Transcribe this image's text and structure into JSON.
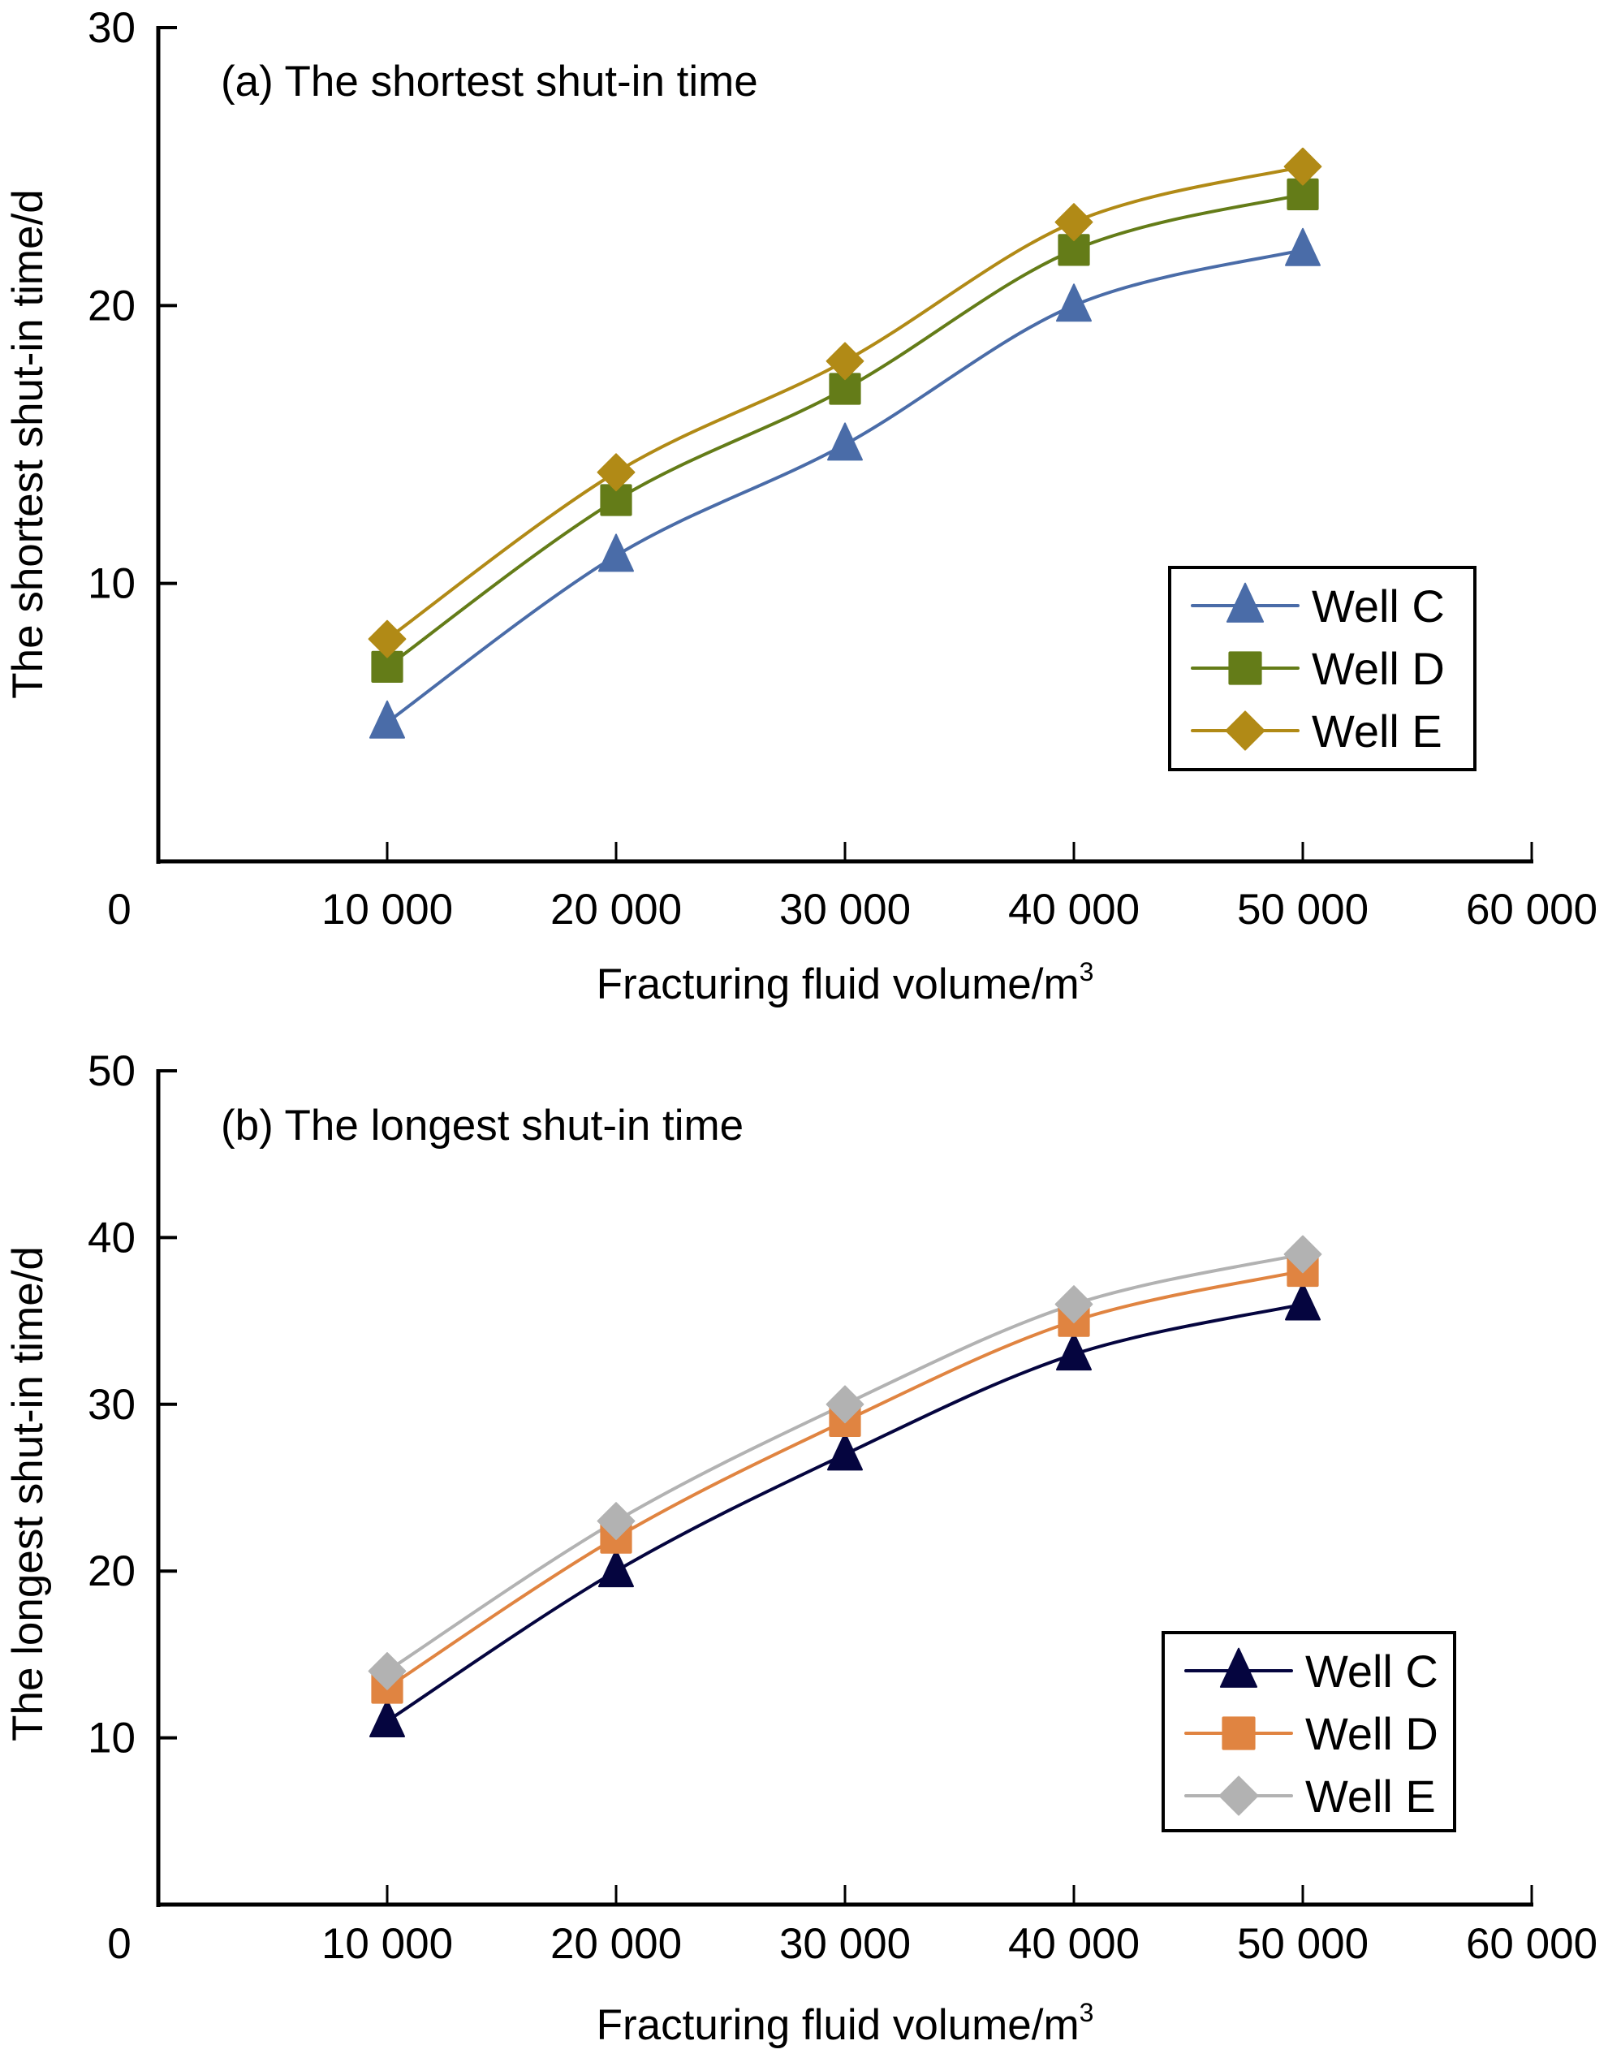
{
  "chart_data": [
    {
      "id": "a",
      "type": "line",
      "title": "(a) The shortest shut-in time",
      "xlabel": "Fracturing fluid volume/m",
      "xlabel_superscript": "3",
      "ylabel": "The shortest shut-in time/d",
      "xlim": [
        0,
        60000
      ],
      "ylim": [
        0,
        30
      ],
      "x_ticks": [
        0,
        10000,
        20000,
        30000,
        40000,
        50000,
        60000
      ],
      "x_tick_labels": [
        "0",
        "10 000",
        "20 000",
        "30 000",
        "40 000",
        "50 000",
        "60 000"
      ],
      "y_ticks": [
        10,
        20,
        30
      ],
      "y_tick_labels": [
        "10",
        "20",
        "30"
      ],
      "grid": false,
      "legend_position": "lower-right",
      "x": [
        10000,
        20000,
        30000,
        40000,
        50000
      ],
      "series": [
        {
          "name": "Well C",
          "marker": "triangle",
          "color": "#4A6CA8",
          "values": [
            5,
            11,
            15,
            20,
            22
          ]
        },
        {
          "name": "Well D",
          "marker": "square",
          "color": "#647C18",
          "values": [
            7,
            13,
            17,
            22,
            24
          ]
        },
        {
          "name": "Well E",
          "marker": "diamond",
          "color": "#B18A16",
          "values": [
            8,
            14,
            18,
            23,
            25
          ]
        }
      ]
    },
    {
      "id": "b",
      "type": "line",
      "title": "(b) The longest shut-in time",
      "xlabel": "Fracturing fluid volume/m",
      "xlabel_superscript": "3",
      "ylabel": "The longest shut-in time/d",
      "xlim": [
        0,
        60000
      ],
      "ylim": [
        0,
        50
      ],
      "x_ticks": [
        0,
        10000,
        20000,
        30000,
        40000,
        50000,
        60000
      ],
      "x_tick_labels": [
        "0",
        "10 000",
        "20 000",
        "30 000",
        "40 000",
        "50 000",
        "60 000"
      ],
      "y_ticks": [
        10,
        20,
        30,
        40,
        50
      ],
      "y_tick_labels": [
        "10",
        "20",
        "30",
        "40",
        "50"
      ],
      "grid": false,
      "legend_position": "lower-right",
      "x": [
        10000,
        20000,
        30000,
        40000,
        50000
      ],
      "series": [
        {
          "name": "Well C",
          "marker": "triangle",
          "color": "#05053F",
          "values": [
            11,
            20,
            27,
            33,
            36
          ]
        },
        {
          "name": "Well D",
          "marker": "square",
          "color": "#E08441",
          "values": [
            13,
            22,
            29,
            35,
            38
          ]
        },
        {
          "name": "Well E",
          "marker": "diamond",
          "color": "#B2B2B2",
          "values": [
            14,
            23,
            30,
            36,
            39
          ]
        }
      ]
    }
  ]
}
